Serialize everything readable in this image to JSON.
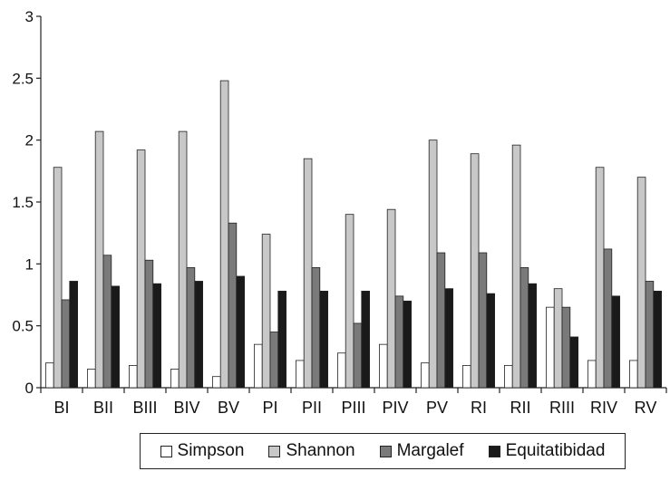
{
  "chart_data": {
    "type": "bar",
    "title": "",
    "xlabel": "",
    "ylabel": "",
    "ylim": [
      0,
      3
    ],
    "yticks": [
      "0",
      "0.5",
      "1",
      "1.5",
      "2",
      "2.5",
      "3"
    ],
    "grid": false,
    "legend_position": "bottom",
    "categories": [
      "BI",
      "BII",
      "BIII",
      "BIV",
      "BV",
      "PI",
      "PII",
      "PIII",
      "PIV",
      "PV",
      "RI",
      "RII",
      "RIII",
      "RIV",
      "RV"
    ],
    "series": [
      {
        "name": "Simpson",
        "color": "#ffffff",
        "values": [
          0.2,
          0.15,
          0.18,
          0.15,
          0.09,
          0.35,
          0.22,
          0.28,
          0.35,
          0.2,
          0.18,
          0.18,
          0.65,
          0.22,
          0.22
        ]
      },
      {
        "name": "Shannon",
        "color": "#c8c8c8",
        "values": [
          1.78,
          2.07,
          1.92,
          2.07,
          2.48,
          1.24,
          1.85,
          1.4,
          1.44,
          2.0,
          1.89,
          1.96,
          0.8,
          1.78,
          1.7
        ]
      },
      {
        "name": "Margalef",
        "color": "#7a7a7a",
        "values": [
          0.71,
          1.07,
          1.03,
          0.97,
          1.33,
          0.45,
          0.97,
          0.52,
          0.74,
          1.09,
          1.09,
          0.97,
          0.65,
          1.12,
          0.86
        ]
      },
      {
        "name": "Equitatibidad",
        "color": "#1a1a1a",
        "values": [
          0.86,
          0.82,
          0.84,
          0.86,
          0.9,
          0.78,
          0.78,
          0.78,
          0.7,
          0.8,
          0.76,
          0.84,
          0.41,
          0.74,
          0.78
        ]
      }
    ]
  }
}
